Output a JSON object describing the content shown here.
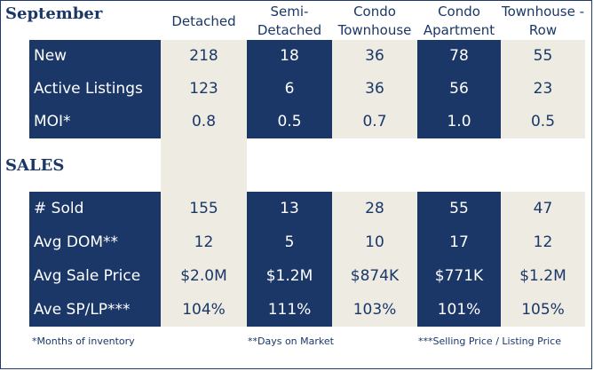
{
  "title": "September",
  "sales_title": "SALES",
  "columns": [
    "Detached",
    "Semi-\nDetached",
    "Condo\nTownhouse",
    "Condo\nApartment",
    "Townhouse -\nRow"
  ],
  "listing_rows": [
    {
      "label": "New",
      "values": [
        "218",
        "18",
        "36",
        "78",
        "55"
      ]
    },
    {
      "label": "Active Listings",
      "values": [
        "123",
        "6",
        "36",
        "56",
        "23"
      ]
    },
    {
      "label": "MOI*",
      "values": [
        "0.8",
        "0.5",
        "0.7",
        "1.0",
        "0.5"
      ]
    }
  ],
  "sales_rows": [
    {
      "label": "# Sold",
      "values": [
        "155",
        "13",
        "28",
        "55",
        "47"
      ]
    },
    {
      "label": "Avg DOM**",
      "values": [
        "12",
        "5",
        "10",
        "17",
        "12"
      ]
    },
    {
      "label": "Avg Sale Price",
      "values": [
        "$2.0M",
        "$1.2M",
        "$874K",
        "$771K",
        "$1.2M"
      ]
    },
    {
      "label": "Ave SP/LP***",
      "values": [
        "104%",
        "111%",
        "103%",
        "101%",
        "105%"
      ]
    }
  ],
  "footnotes": {
    "moi": "*Months of inventory",
    "dom": "**Days on Market",
    "splp": "***Selling Price / Listing Price"
  },
  "colors": {
    "navy": "#1b3768",
    "beige": "#edebe2"
  }
}
